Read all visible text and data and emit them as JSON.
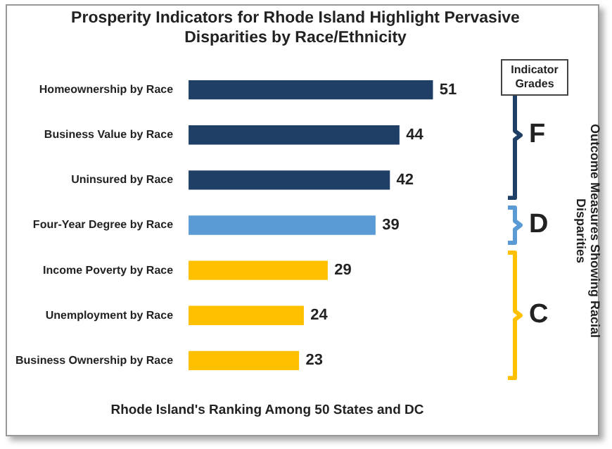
{
  "chart_data": {
    "type": "bar",
    "orientation": "horizontal",
    "title": "Prosperity Indicators for Rhode Island Highlight Pervasive Disparities by Race/Ethnicity",
    "xlabel": "Rhode Island's Ranking Among 50 States and DC",
    "categories": [
      "Homeownership by Race",
      "Business Value by Race",
      "Uninsured by Race",
      "Four-Year Degree by Race",
      "Income Poverty by Race",
      "Unemployment by Race",
      "Business Ownership by Race"
    ],
    "values": [
      51,
      44,
      42,
      39,
      29,
      24,
      23
    ],
    "colors": [
      "#1f3f66",
      "#1f3f66",
      "#1f3f66",
      "#5b9bd5",
      "#ffc000",
      "#ffc000",
      "#ffc000"
    ],
    "data_labels": true,
    "tick_labels": "y",
    "annotations": [
      "Indicator Grades",
      "F",
      "D",
      "C",
      "Outcome Measures Showing Racial Disparities"
    ]
  }
}
